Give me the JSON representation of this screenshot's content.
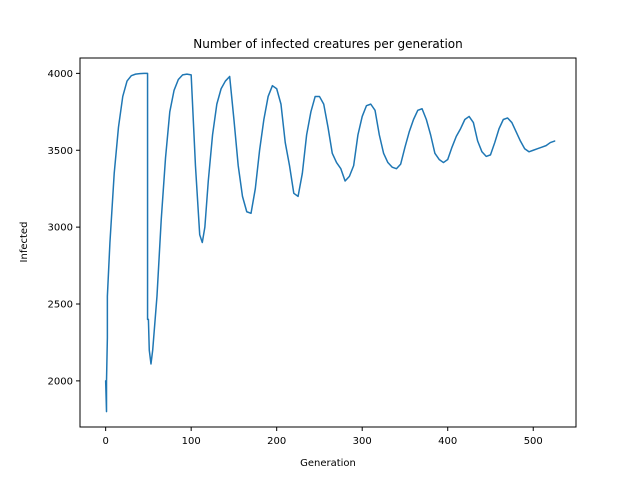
{
  "chart_data": {
    "type": "line",
    "title": "Number of infected creatures per generation",
    "xlabel": "Generation",
    "ylabel": "Infected",
    "xlim": [
      -30,
      550
    ],
    "ylim": [
      1700,
      4100
    ],
    "xticks": [
      0,
      100,
      200,
      300,
      400,
      500
    ],
    "yticks": [
      2000,
      2500,
      3000,
      3500,
      4000
    ],
    "grid": false,
    "color": "#1f77b4",
    "series": [
      {
        "name": "",
        "x": [
          0,
          1,
          1,
          2,
          2,
          5,
          10,
          15,
          20,
          25,
          30,
          35,
          40,
          45,
          49,
          49,
          50,
          51,
          53,
          55,
          60,
          65,
          70,
          75,
          80,
          85,
          90,
          95,
          100,
          105,
          110,
          113,
          116,
          120,
          125,
          130,
          135,
          140,
          145,
          150,
          155,
          160,
          165,
          170,
          175,
          180,
          185,
          190,
          195,
          200,
          205,
          210,
          215,
          220,
          225,
          230,
          235,
          240,
          245,
          250,
          255,
          260,
          265,
          270,
          275,
          280,
          285,
          290,
          295,
          300,
          305,
          310,
          315,
          320,
          325,
          330,
          335,
          340,
          345,
          350,
          355,
          360,
          365,
          370,
          375,
          380,
          385,
          390,
          395,
          400,
          405,
          410,
          415,
          420,
          425,
          430,
          435,
          440,
          445,
          450,
          455,
          460,
          465,
          470,
          475,
          480,
          485,
          490,
          495,
          500,
          505,
          510,
          515,
          520,
          525
        ],
        "values": [
          2000,
          1800,
          2000,
          2280,
          2550,
          2900,
          3350,
          3650,
          3850,
          3950,
          3985,
          3995,
          3998,
          4000,
          4000,
          2400,
          2400,
          2200,
          2110,
          2200,
          2550,
          3050,
          3450,
          3750,
          3890,
          3960,
          3990,
          3995,
          3990,
          3400,
          2950,
          2900,
          3000,
          3300,
          3600,
          3800,
          3900,
          3950,
          3980,
          3700,
          3400,
          3200,
          3100,
          3090,
          3250,
          3500,
          3700,
          3850,
          3920,
          3900,
          3800,
          3550,
          3400,
          3220,
          3200,
          3350,
          3600,
          3750,
          3850,
          3850,
          3800,
          3650,
          3480,
          3420,
          3380,
          3300,
          3330,
          3400,
          3600,
          3720,
          3790,
          3800,
          3760,
          3600,
          3480,
          3420,
          3390,
          3380,
          3410,
          3520,
          3620,
          3700,
          3760,
          3770,
          3700,
          3600,
          3480,
          3440,
          3420,
          3440,
          3520,
          3590,
          3640,
          3700,
          3720,
          3680,
          3560,
          3490,
          3460,
          3470,
          3550,
          3640,
          3700,
          3710,
          3680,
          3620,
          3560,
          3510,
          3490,
          3500,
          3510,
          3520,
          3530,
          3550,
          3560
        ]
      }
    ]
  }
}
